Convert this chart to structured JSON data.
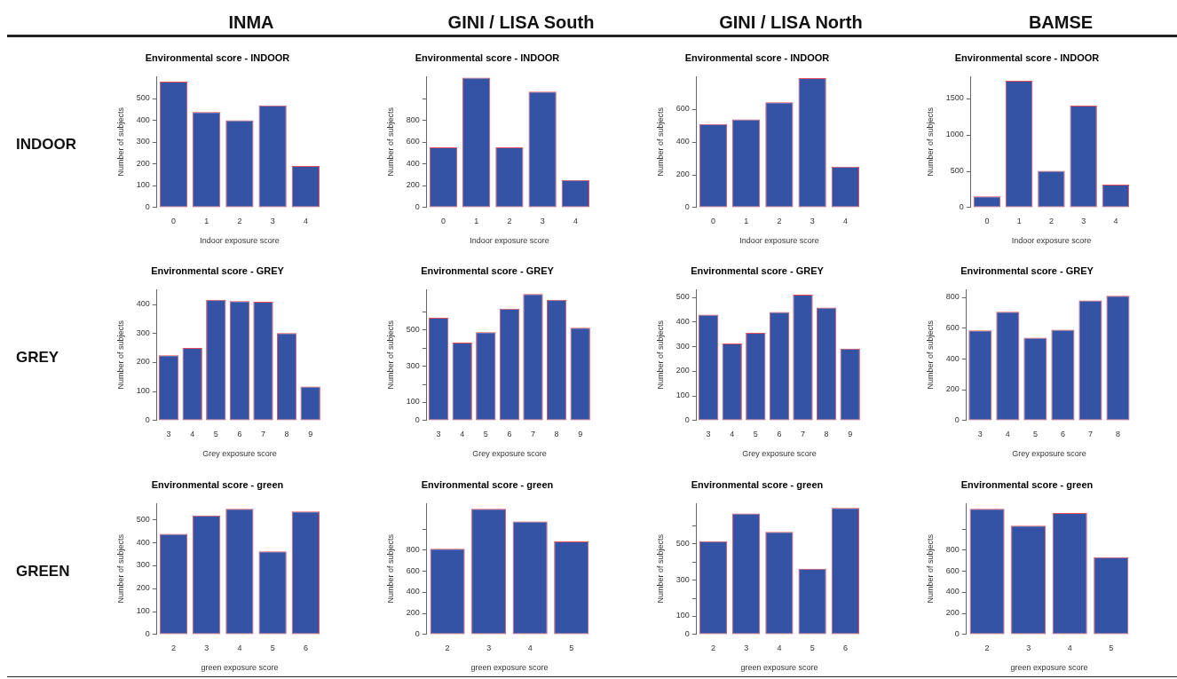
{
  "chart_data": [
    {
      "type": "bar",
      "title": "Environmental score - INDOOR",
      "xlabel": "Indoor exposure score",
      "ylabel": "Number of subjects",
      "categories": [
        "0",
        "1",
        "2",
        "3",
        "4"
      ],
      "values": [
        576,
        437,
        399,
        467,
        189
      ],
      "color": "#3453a4",
      "ylim": [
        0,
        600
      ],
      "yticks": [
        0,
        100,
        200,
        300,
        400,
        500
      ],
      "annotations": [
        "INMA",
        "INDOOR"
      ]
    },
    {
      "type": "bar",
      "title": "Environmental score - INDOOR",
      "xlabel": "Indoor exposure score",
      "ylabel": "Number of subjects",
      "categories": [
        "0",
        "1",
        "2",
        "3",
        "4"
      ],
      "values": [
        550,
        1190,
        550,
        1060,
        250
      ],
      "color": "#3453a4",
      "ylim": [
        0,
        1200
      ],
      "yticks": [
        0,
        200,
        400,
        600,
        800,
        {
          "value": 1000,
          "label": null
        }
      ],
      "annotations": [
        "GINI / LISA South"
      ]
    },
    {
      "type": "bar",
      "title": "Environmental score - INDOOR",
      "xlabel": "Indoor exposure score",
      "ylabel": "Number of subjects",
      "categories": [
        "0",
        "1",
        "2",
        "3",
        "4"
      ],
      "values": [
        509,
        537,
        642,
        790,
        248
      ],
      "color": "#3453a4",
      "ylim": [
        0,
        800
      ],
      "yticks": [
        0,
        200,
        400,
        600
      ],
      "annotations": [
        "GINI / LISA North"
      ]
    },
    {
      "type": "bar",
      "title": "Environmental score - INDOOR",
      "xlabel": "Indoor exposure score",
      "ylabel": "Number of subjects",
      "categories": [
        "0",
        "1",
        "2",
        "3",
        "4"
      ],
      "values": [
        150,
        1740,
        500,
        1400,
        310
      ],
      "color": "#3453a4",
      "ylim": [
        0,
        1800
      ],
      "yticks": [
        0,
        500,
        1000,
        1500
      ],
      "annotations": [
        "BAMSE"
      ]
    },
    {
      "type": "bar",
      "title": "Environmental score - GREY",
      "xlabel": "Grey exposure score",
      "ylabel": "Number of subjects",
      "categories": [
        "3",
        "4",
        "5",
        "6",
        "7",
        "8",
        "9"
      ],
      "values": [
        224,
        249,
        415,
        410,
        408,
        300,
        116
      ],
      "color": "#3453a4",
      "ylim": [
        0,
        450
      ],
      "yticks": [
        0,
        100,
        200,
        300,
        400
      ],
      "annotations": [
        "GREY"
      ]
    },
    {
      "type": "bar",
      "title": "Environmental score - GREY",
      "xlabel": "Grey exposure score",
      "ylabel": "Number of subjects",
      "categories": [
        "3",
        "4",
        "5",
        "6",
        "7",
        "8",
        "9"
      ],
      "values": [
        565,
        428,
        485,
        615,
        695,
        663,
        510
      ],
      "color": "#3453a4",
      "ylim": [
        0,
        720
      ],
      "yticks": [
        0,
        100,
        {
          "value": 200,
          "label": null
        },
        300,
        {
          "value": 400,
          "label": null
        },
        500,
        {
          "value": 600,
          "label": null
        }
      ]
    },
    {
      "type": "bar",
      "title": "Environmental score - GREY",
      "xlabel": "Grey exposure score",
      "ylabel": "Number of subjects",
      "categories": [
        "3",
        "4",
        "5",
        "6",
        "7",
        "8",
        "9"
      ],
      "values": [
        428,
        311,
        354,
        439,
        509,
        457,
        290
      ],
      "color": "#3453a4",
      "ylim": [
        0,
        530
      ],
      "yticks": [
        0,
        100,
        200,
        300,
        400,
        500
      ]
    },
    {
      "type": "bar",
      "title": "Environmental score - GREY",
      "xlabel": "Grey exposure score",
      "ylabel": "Number of subjects",
      "categories": [
        "3",
        "4",
        "5",
        "6",
        "7",
        "8"
      ],
      "values": [
        584,
        705,
        536,
        588,
        779,
        810
      ],
      "color": "#3453a4",
      "ylim": [
        0,
        850
      ],
      "yticks": [
        0,
        200,
        400,
        600,
        800
      ]
    },
    {
      "type": "bar",
      "title": "Environmental score - green",
      "xlabel": "green exposure score",
      "ylabel": "Number of subjects",
      "categories": [
        "2",
        "3",
        "4",
        "5",
        "6"
      ],
      "values": [
        437,
        518,
        547,
        361,
        535
      ],
      "color": "#3453a4",
      "ylim": [
        0,
        570
      ],
      "yticks": [
        0,
        100,
        200,
        300,
        400,
        500
      ],
      "annotations": [
        "GREEN"
      ]
    },
    {
      "type": "bar",
      "title": "Environmental score - green",
      "xlabel": "green exposure score",
      "ylabel": "Number of subjects",
      "categories": [
        "2",
        "3",
        "4",
        "5"
      ],
      "values": [
        810,
        1190,
        1070,
        880
      ],
      "color": "#3453a4",
      "ylim": [
        0,
        1240
      ],
      "yticks": [
        0,
        200,
        400,
        600,
        800,
        {
          "value": 1000,
          "label": null
        }
      ]
    },
    {
      "type": "bar",
      "title": "Environmental score - green",
      "xlabel": "green exposure score",
      "ylabel": "Number of subjects",
      "categories": [
        "2",
        "3",
        "4",
        "5",
        "6"
      ],
      "values": [
        512,
        665,
        563,
        360,
        695
      ],
      "color": "#3453a4",
      "ylim": [
        0,
        720
      ],
      "yticks": [
        0,
        100,
        {
          "value": 200,
          "label": null
        },
        300,
        {
          "value": 400,
          "label": null
        },
        500,
        {
          "value": 600,
          "label": null
        }
      ]
    },
    {
      "type": "bar",
      "title": "Environmental score - green",
      "xlabel": "green exposure score",
      "ylabel": "Number of subjects",
      "categories": [
        "2",
        "3",
        "4",
        "5"
      ],
      "values": [
        1190,
        1030,
        1150,
        730
      ],
      "color": "#3453a4",
      "ylim": [
        0,
        1240
      ],
      "yticks": [
        0,
        200,
        400,
        600,
        800,
        {
          "value": 1000,
          "label": null
        }
      ]
    }
  ]
}
